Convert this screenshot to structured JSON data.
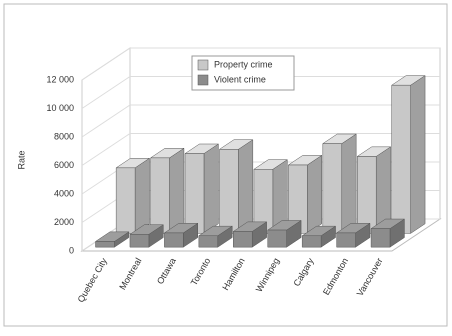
{
  "chart_data": {
    "type": "bar3d",
    "y_label": "Rate",
    "categories": [
      "Quebec City",
      "Montreal",
      "Ottawa",
      "Toronto",
      "Hamilton",
      "Winnipeg",
      "Calgary",
      "Edmonton",
      "Vancouver"
    ],
    "series": [
      {
        "name": "Property crime",
        "color": "#c8c8c8",
        "values": [
          4600,
          5300,
          5600,
          5900,
          4500,
          4800,
          6300,
          5400,
          10400
        ]
      },
      {
        "name": "Violent crime",
        "color": "#8c8c8c",
        "values": [
          400,
          900,
          1000,
          800,
          1100,
          1200,
          800,
          1000,
          1300
        ]
      }
    ],
    "ylim": [
      0,
      12000
    ],
    "yticks": [
      0,
      2000,
      4000,
      6000,
      8000,
      {
        "value": 10000,
        "label": "10 000"
      },
      {
        "value": 12000,
        "label": "12 000"
      }
    ],
    "grid": true
  }
}
